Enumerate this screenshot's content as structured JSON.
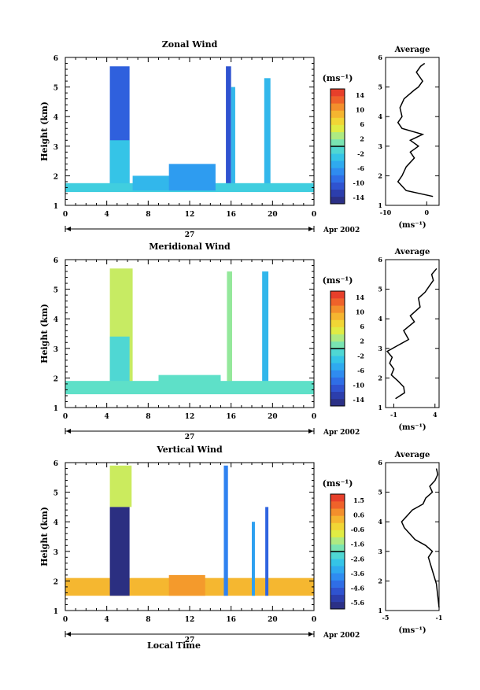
{
  "page": {
    "time_axis_label": "Local Time",
    "date_day": "27",
    "date_month": "Apr 2002"
  },
  "chart_data": [
    {
      "type": "heatmap",
      "title": "Zonal Wind",
      "ylabel": "Height (km)",
      "xlabel": "Local Time",
      "xlim": [
        0,
        24
      ],
      "ylim": [
        1,
        6
      ],
      "xticks": [
        "0",
        "4",
        "8",
        "12",
        "16",
        "20",
        "0"
      ],
      "yticks": [
        "1",
        "2",
        "3",
        "4",
        "5",
        "6"
      ],
      "colorbar": {
        "unit": "(ms⁻¹)",
        "ticks": [
          "14",
          "10",
          "6",
          "2",
          "-2",
          "-6",
          "-10",
          "-14"
        ],
        "range": [
          -16,
          16
        ]
      },
      "blocks": [
        {
          "t0": 4.3,
          "t1": 6.2,
          "h0": 1.5,
          "h1": 5.7,
          "v": -10
        },
        {
          "t0": 4.3,
          "t1": 6.2,
          "h0": 1.5,
          "h1": 3.2,
          "v": -3
        },
        {
          "t0": 15.5,
          "t1": 16.0,
          "h0": 1.5,
          "h1": 5.7,
          "v": -11
        },
        {
          "t0": 16.0,
          "t1": 16.4,
          "h0": 1.5,
          "h1": 5.0,
          "v": -4
        },
        {
          "t0": 19.2,
          "t1": 19.8,
          "h0": 1.5,
          "h1": 5.3,
          "v": -4
        },
        {
          "t0": 0.0,
          "t1": 24.0,
          "h0": 1.45,
          "h1": 1.75,
          "v": -2
        },
        {
          "t0": 6.5,
          "t1": 14.0,
          "h0": 1.5,
          "h1": 2.0,
          "v": -4
        },
        {
          "t0": 10.0,
          "t1": 14.5,
          "h0": 1.5,
          "h1": 2.4,
          "v": -6
        }
      ],
      "profile": {
        "title": "Average",
        "unit": "(ms⁻¹)",
        "xlim": [
          -10,
          3
        ],
        "xticks": [
          "-10",
          "0"
        ],
        "heights": [
          1.3,
          1.5,
          1.8,
          2.0,
          2.3,
          2.6,
          2.8,
          3.0,
          3.2,
          3.4,
          3.6,
          3.8,
          4.0,
          4.3,
          4.6,
          4.9,
          5.0,
          5.2,
          5.5,
          5.7,
          5.8
        ],
        "values": [
          1.5,
          -5.0,
          -7.0,
          -6.0,
          -5.0,
          -3.0,
          -4.0,
          -2.0,
          -4.0,
          -1.0,
          -6.0,
          -7.0,
          -6.0,
          -6.5,
          -5.5,
          -3.0,
          -2.0,
          -1.0,
          -2.5,
          -1.5,
          -0.5
        ]
      }
    },
    {
      "type": "heatmap",
      "title": "Meridional Wind",
      "ylabel": "Height (km)",
      "xlabel": "Local Time",
      "xlim": [
        0,
        24
      ],
      "ylim": [
        1,
        6
      ],
      "xticks": [
        "0",
        "4",
        "8",
        "12",
        "16",
        "20",
        "0"
      ],
      "yticks": [
        "1",
        "2",
        "3",
        "4",
        "5",
        "6"
      ],
      "colorbar": {
        "unit": "(ms⁻¹)",
        "ticks": [
          "14",
          "10",
          "6",
          "2",
          "-2",
          "-6",
          "-10",
          "-14"
        ],
        "range": [
          -16,
          16
        ]
      },
      "blocks": [
        {
          "t0": 4.3,
          "t1": 6.5,
          "h0": 1.5,
          "h1": 5.7,
          "v": 4
        },
        {
          "t0": 4.3,
          "t1": 6.2,
          "h0": 1.5,
          "h1": 3.4,
          "v": -1
        },
        {
          "t0": 15.6,
          "t1": 16.1,
          "h0": 1.5,
          "h1": 5.6,
          "v": 2
        },
        {
          "t0": 19.0,
          "t1": 19.6,
          "h0": 1.5,
          "h1": 5.6,
          "v": -4
        },
        {
          "t0": 0.0,
          "t1": 24.0,
          "h0": 1.45,
          "h1": 1.9,
          "v": 0
        },
        {
          "t0": 9.0,
          "t1": 15.0,
          "h0": 1.5,
          "h1": 2.1,
          "v": 0
        }
      ],
      "profile": {
        "title": "Average",
        "unit": "(ms⁻¹)",
        "xlim": [
          -2,
          4.5
        ],
        "xticks": [
          "-1",
          "4"
        ],
        "heights": [
          1.3,
          1.5,
          1.7,
          1.9,
          2.1,
          2.3,
          2.5,
          2.7,
          2.9,
          3.1,
          3.3,
          3.6,
          3.9,
          4.1,
          4.4,
          4.7,
          4.9,
          5.1,
          5.3,
          5.5,
          5.7
        ],
        "values": [
          -0.8,
          0.3,
          0.2,
          -0.5,
          -1.3,
          -1.0,
          -1.5,
          -1.2,
          -1.8,
          -0.5,
          0.8,
          0.2,
          1.5,
          1.0,
          2.2,
          2.0,
          2.8,
          3.3,
          3.8,
          3.6,
          4.2
        ]
      }
    },
    {
      "type": "heatmap",
      "title": "Vertical Wind",
      "ylabel": "Height (km)",
      "xlabel": "Local Time",
      "xlim": [
        0,
        24
      ],
      "ylim": [
        1,
        6
      ],
      "xticks": [
        "0",
        "4",
        "8",
        "12",
        "16",
        "20",
        "0"
      ],
      "yticks": [
        "1",
        "2",
        "3",
        "4",
        "5",
        "6"
      ],
      "colorbar": {
        "unit": "(ms⁻¹)",
        "ticks": [
          "1.5",
          "0.6",
          "-0.6",
          "-1.6",
          "-2.6",
          "-3.6",
          "-4.6",
          "-5.6"
        ],
        "range": [
          -6.1,
          2.0
        ]
      },
      "blocks": [
        {
          "t0": 0.0,
          "t1": 24.0,
          "h0": 1.5,
          "h1": 2.1,
          "v": 0.2
        },
        {
          "t0": 10.0,
          "t1": 13.5,
          "h0": 1.5,
          "h1": 2.2,
          "v": 0.6
        },
        {
          "t0": 4.3,
          "t1": 6.4,
          "h0": 4.5,
          "h1": 5.9,
          "v": -1.0
        },
        {
          "t0": 4.3,
          "t1": 6.2,
          "h0": 1.5,
          "h1": 4.5,
          "v": -5.9
        },
        {
          "t0": 15.3,
          "t1": 15.7,
          "h0": 1.5,
          "h1": 5.9,
          "v": -4.0
        },
        {
          "t0": 18.0,
          "t1": 18.3,
          "h0": 1.5,
          "h1": 4.0,
          "v": -3.5
        },
        {
          "t0": 19.3,
          "t1": 19.6,
          "h0": 1.5,
          "h1": 4.5,
          "v": -4.5
        }
      ],
      "profile": {
        "title": "Average",
        "unit": "(ms⁻¹)",
        "xlim": [
          -5,
          -1
        ],
        "xticks": [
          "-5",
          "-1"
        ],
        "heights": [
          1.1,
          1.9,
          2.2,
          2.5,
          2.8,
          3.0,
          3.2,
          3.4,
          3.6,
          3.8,
          4.0,
          4.2,
          4.4,
          4.6,
          4.8,
          5.0,
          5.2,
          5.4,
          5.6,
          5.8
        ],
        "values": [
          -1.0,
          -1.2,
          -1.4,
          -1.6,
          -1.8,
          -1.5,
          -2.0,
          -2.8,
          -3.2,
          -3.6,
          -3.8,
          -3.4,
          -3.0,
          -2.2,
          -2.0,
          -1.5,
          -1.7,
          -1.3,
          -1.1,
          -1.2
        ]
      }
    }
  ]
}
